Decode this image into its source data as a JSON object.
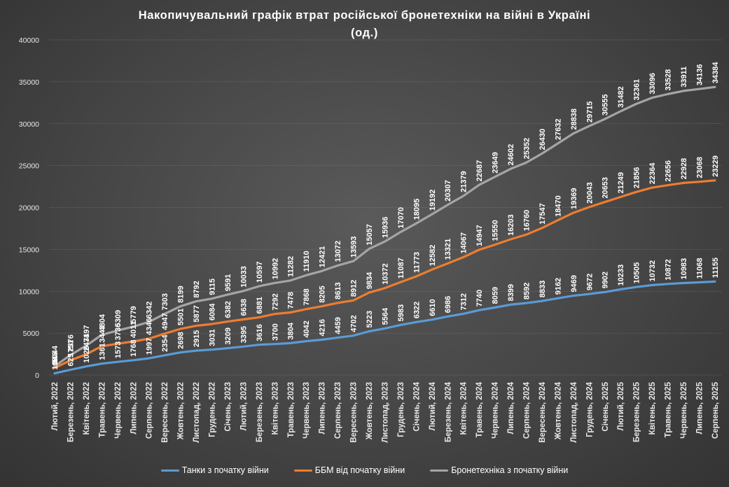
{
  "title": "Накопичувальний  графік  втрат  російської  бронетехніки  на  війні  в  Україні\n(од.)",
  "chart_data": {
    "type": "line",
    "title": "Накопичувальний  графік  втрат  російської  бронетехніки  на  війні  в  Україні\n(од.)",
    "xlabel": "",
    "ylabel": "",
    "ylim": [
      0,
      40000
    ],
    "yticks": [
      0,
      5000,
      10000,
      15000,
      20000,
      25000,
      30000,
      35000,
      40000
    ],
    "grid": true,
    "legend_position": "bottom",
    "categories": [
      "Лютий, 2022",
      "Березень, 2022",
      "Квітень, 2022",
      "Травень, 2022",
      "Червень, 2022",
      "Липень, 2022",
      "Серпень, 2022",
      "Вересень, 2022",
      "Жовтень, 2022",
      "Листопад, 2022",
      "Грудень, 2022",
      "Січень, 2023",
      "Лютий, 2023",
      "Березень, 2023",
      "Квітень, 2023",
      "Травень, 2023",
      "Червень, 2023",
      "Липень, 2023",
      "Серпень, 2023",
      "Вересень, 2023",
      "Жовтень, 2023",
      "Листопад, 2023",
      "Грудень, 2023",
      "Січень, 2024",
      "Лютий, 2024",
      "Березень, 2024",
      "Квітень, 2024",
      "Травень, 2024",
      "Червень, 2024",
      "Липень, 2024",
      "Серпень, 2024",
      "Вересень, 2024",
      "Жовтень, 2024",
      "Листопад, 2024",
      "Грудень, 2024",
      "Січень, 2025",
      "Лютий, 2025",
      "Березень, 2025",
      "Квітень, 2025",
      "Травень, 2025",
      "Червень, 2025",
      "Липень, 2025",
      "Серпень, 2025"
    ],
    "series": [
      {
        "name": "Танки з початку війни",
        "color": "#5b9bd5",
        "values": [
          198,
          625,
          1026,
          1361,
          1573,
          1768,
          1997,
          2354,
          2698,
          2915,
          3031,
          3209,
          3395,
          3616,
          3700,
          3804,
          4042,
          4216,
          4459,
          4702,
          5223,
          5564,
          5983,
          6322,
          6610,
          6986,
          7312,
          7740,
          8059,
          8399,
          8592,
          8833,
          9162,
          9469,
          9672,
          9902,
          10233,
          10505,
          10732,
          10872,
          10983,
          11068,
          11155
        ]
      },
      {
        "name": "ББМ від початку війни",
        "color": "#ed7d31",
        "values": [
          846,
          1751,
          2471,
          3443,
          3736,
          4011,
          4346,
          4947,
          5501,
          5877,
          6084,
          6382,
          6638,
          6881,
          7292,
          7478,
          7868,
          8205,
          8613,
          8912,
          9834,
          10372,
          11087,
          11773,
          12582,
          13321,
          14067,
          14947,
          15550,
          16203,
          16760,
          17547,
          18470,
          19369,
          20043,
          20653,
          21249,
          21856,
          22364,
          22656,
          22928,
          23068,
          23229
        ]
      },
      {
        "name": "Бронетехніка з початку війни",
        "color": "#a5a5a5",
        "values": [
          1044,
          2376,
          3497,
          4804,
          5309,
          5779,
          6342,
          7303,
          8199,
          8792,
          9115,
          9591,
          10033,
          10597,
          10992,
          11282,
          11910,
          12421,
          13072,
          13593,
          15057,
          15936,
          17070,
          18095,
          19192,
          20307,
          21379,
          22687,
          23649,
          24602,
          25352,
          26430,
          27632,
          28838,
          29715,
          30555,
          31482,
          32361,
          33096,
          33528,
          33911,
          34136,
          34384
        ]
      }
    ]
  }
}
